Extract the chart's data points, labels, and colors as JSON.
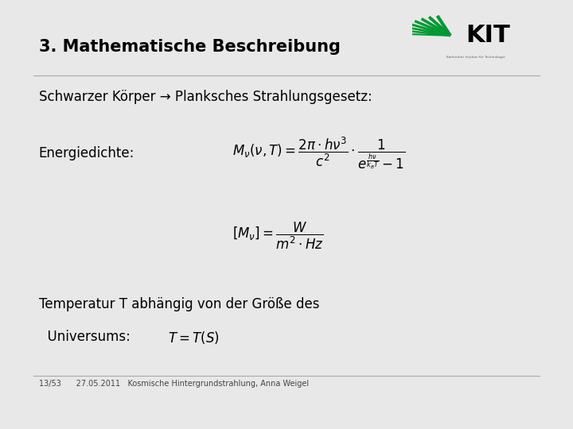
{
  "bg_color": "#e8e8e8",
  "slide_bg": "#ffffff",
  "title": "3. Mathematische Beschreibung",
  "line1": "Schwarzer Körper → Planksches Strahlungsgesetz:",
  "label_energy": "Energiedichte:",
  "line_temp1": "Temperatur T abhängig von der Größe des",
  "line_temp2": "  Universums:",
  "footer": "13/53      27.05.2011   Kosmische Hintergrundstrahlung, Anna Weigel",
  "kit_text": "Karlsruher Institut für Technologie",
  "border_color": "#bbbbbb",
  "title_color": "#000000",
  "text_color": "#000000",
  "footer_color": "#444444",
  "kit_green": "#009933"
}
